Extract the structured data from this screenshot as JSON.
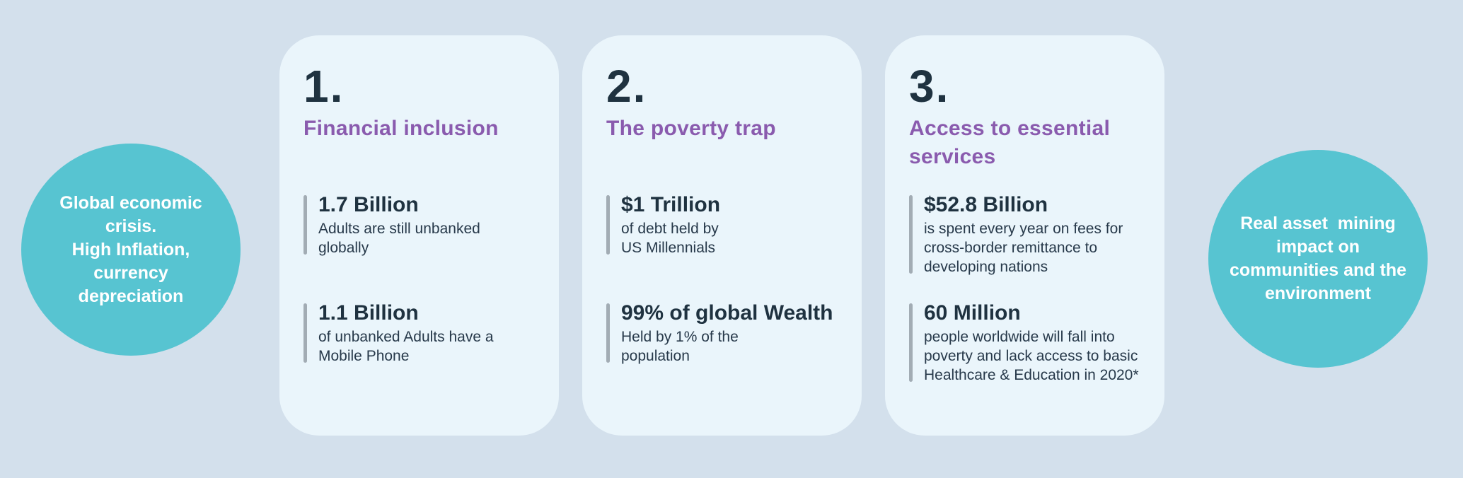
{
  "theme": {
    "bg": "#d3e0ec",
    "card_bg": "#eaf5fb",
    "teal": "#57c4d1",
    "purple": "#8a5bae",
    "navy": "#1f3240",
    "body_text": "#27394a",
    "bar_gray": "#a2acb4",
    "white": "#ffffff"
  },
  "left_bubble": {
    "text": "Global economic\ncrisis.\nHigh Inflation,\ncurrency\ndepreciation"
  },
  "right_bubble": {
    "text": "Real asset  mining\nimpact on\ncommunities and the\nenvironment"
  },
  "cards": [
    {
      "number": "1.",
      "title": "Financial inclusion",
      "stats": [
        {
          "value": "1.7 Billion",
          "description": "Adults are still unbanked\nglobally"
        },
        {
          "value": "1.1 Billion",
          "description": "of unbanked Adults have a\nMobile Phone"
        }
      ]
    },
    {
      "number": "2.",
      "title": "The poverty trap",
      "stats": [
        {
          "value": "$1 Trillion",
          "description": "of debt held by\nUS Millennials"
        },
        {
          "value": "99% of global Wealth",
          "description": "Held by 1% of the\npopulation"
        }
      ]
    },
    {
      "number": "3.",
      "title": "Access to essential\nservices",
      "stats": [
        {
          "value": "$52.8 Billion",
          "description": "is spent every year on fees for\ncross-border remittance to\ndeveloping nations"
        },
        {
          "value": "60 Million",
          "description": "people worldwide will fall into\npoverty and lack access to basic\nHealthcare & Education in 2020*"
        }
      ]
    }
  ]
}
